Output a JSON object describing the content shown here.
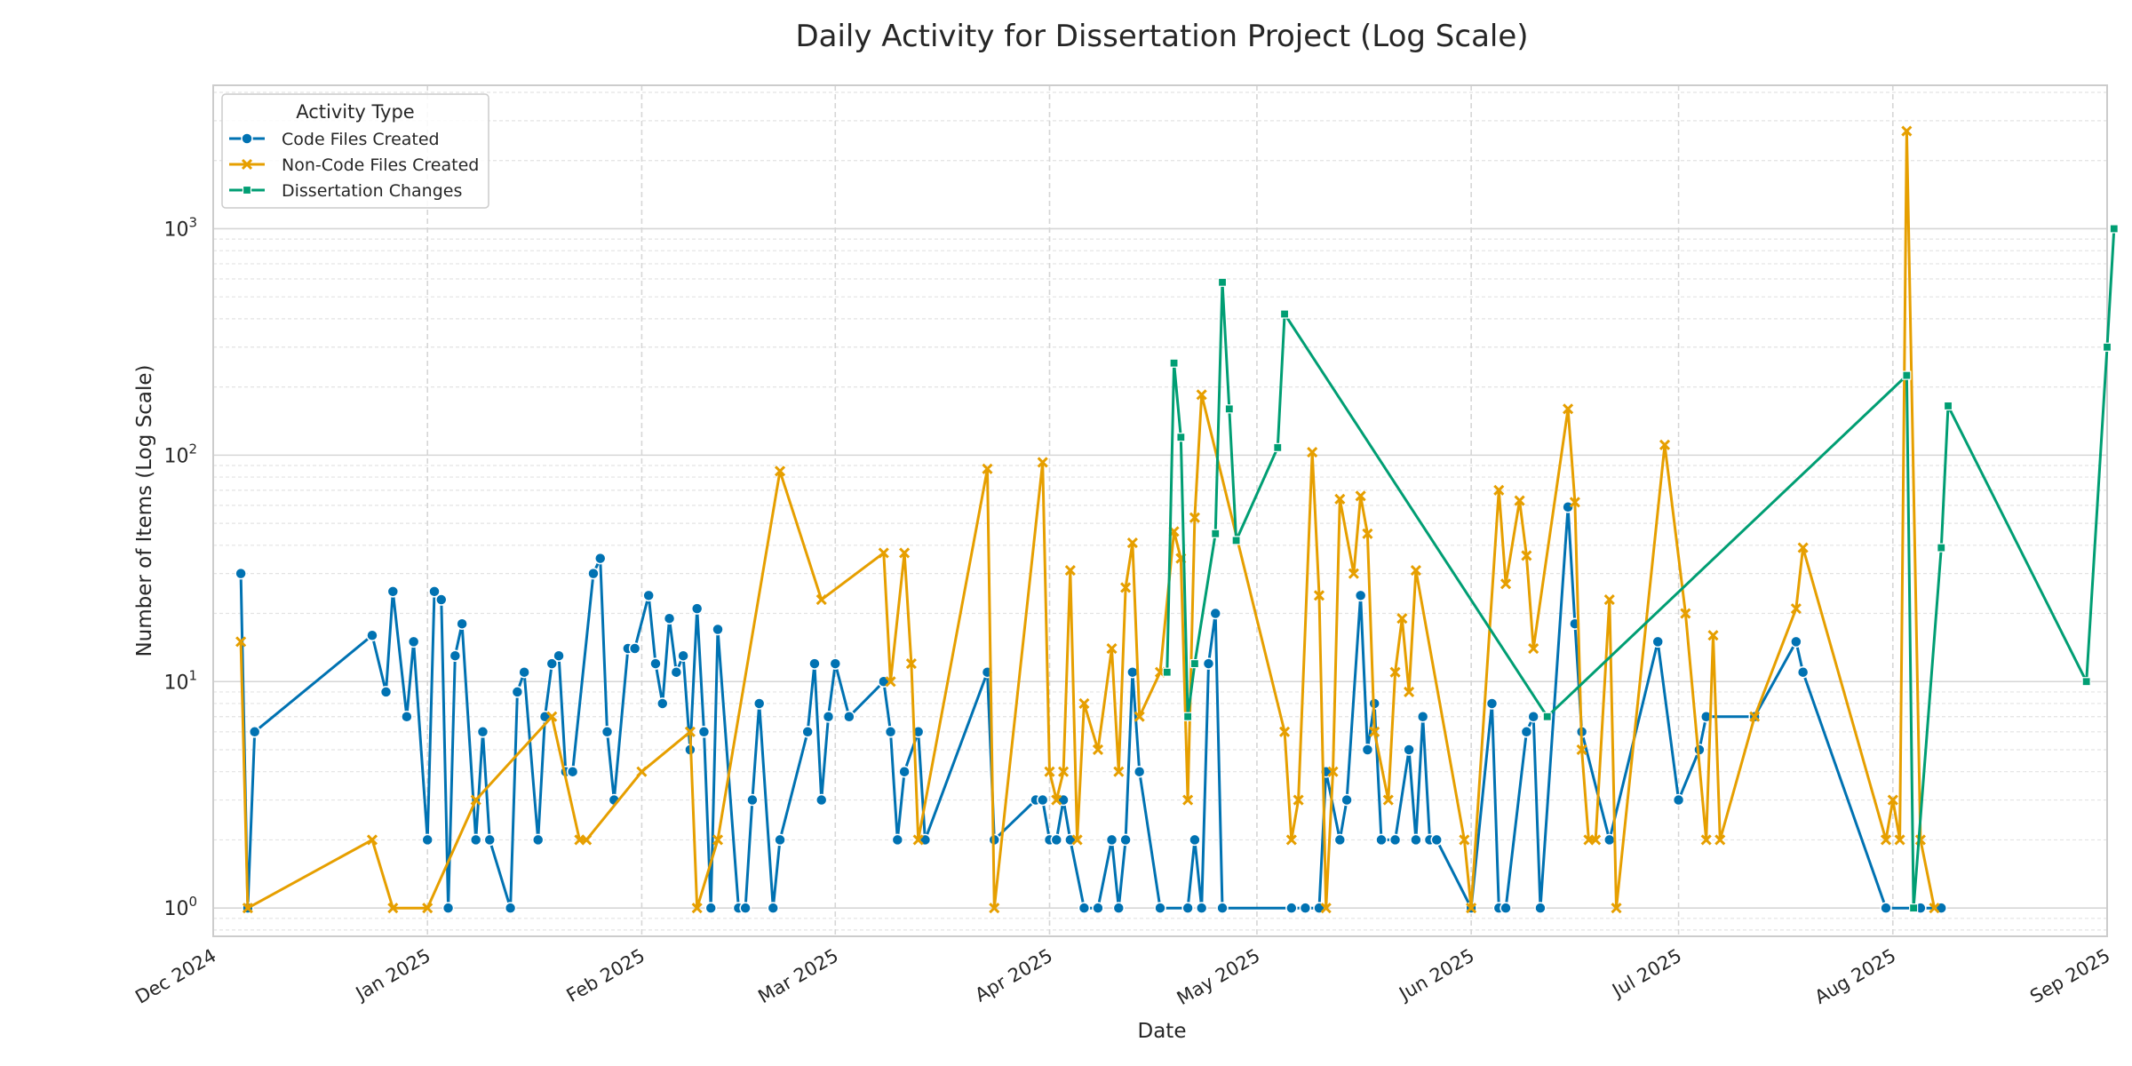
{
  "chart_data": {
    "type": "line",
    "title": "Daily Activity for Dissertation Project (Log Scale)",
    "xlabel": "Date",
    "ylabel": "Number of Items (Log Scale)",
    "y_scale": "log",
    "ylim": [
      0.75,
      4300
    ],
    "xlim": [
      "2024-12-01",
      "2025-09-01"
    ],
    "grid": true,
    "legend_position": "top-left",
    "legend_title": "Activity Type",
    "x_ticks": [
      {
        "date": "2024-12-01",
        "label": "Dec 2024"
      },
      {
        "date": "2025-01-01",
        "label": "Jan 2025"
      },
      {
        "date": "2025-02-01",
        "label": "Feb 2025"
      },
      {
        "date": "2025-03-01",
        "label": "Mar 2025"
      },
      {
        "date": "2025-04-01",
        "label": "Apr 2025"
      },
      {
        "date": "2025-05-01",
        "label": "May 2025"
      },
      {
        "date": "2025-06-01",
        "label": "Jun 2025"
      },
      {
        "date": "2025-07-01",
        "label": "Jul 2025"
      },
      {
        "date": "2025-08-01",
        "label": "Aug 2025"
      },
      {
        "date": "2025-09-01",
        "label": "Sep 2025"
      }
    ],
    "y_ticks": [
      {
        "value": 1,
        "base": "10",
        "exp": "0"
      },
      {
        "value": 10,
        "base": "10",
        "exp": "1"
      },
      {
        "value": 100,
        "base": "10",
        "exp": "2"
      },
      {
        "value": 1000,
        "base": "10",
        "exp": "3"
      }
    ],
    "series": [
      {
        "name": "Code Files Created",
        "color": "#0072b2",
        "marker": "circle",
        "points": [
          [
            "2024-12-05",
            30
          ],
          [
            "2024-12-06",
            1
          ],
          [
            "2024-12-07",
            6
          ],
          [
            "2024-12-24",
            16
          ],
          [
            "2024-12-26",
            9
          ],
          [
            "2024-12-27",
            25
          ],
          [
            "2024-12-29",
            7
          ],
          [
            "2024-12-30",
            15
          ],
          [
            "2025-01-01",
            2
          ],
          [
            "2025-01-02",
            25
          ],
          [
            "2025-01-03",
            23
          ],
          [
            "2025-01-04",
            1
          ],
          [
            "2025-01-05",
            13
          ],
          [
            "2025-01-06",
            18
          ],
          [
            "2025-01-08",
            2
          ],
          [
            "2025-01-09",
            6
          ],
          [
            "2025-01-10",
            2
          ],
          [
            "2025-01-13",
            1
          ],
          [
            "2025-01-14",
            9
          ],
          [
            "2025-01-15",
            11
          ],
          [
            "2025-01-17",
            2
          ],
          [
            "2025-01-18",
            7
          ],
          [
            "2025-01-19",
            12
          ],
          [
            "2025-01-20",
            13
          ],
          [
            "2025-01-21",
            4
          ],
          [
            "2025-01-22",
            4
          ],
          [
            "2025-01-25",
            30
          ],
          [
            "2025-01-26",
            35
          ],
          [
            "2025-01-27",
            6
          ],
          [
            "2025-01-28",
            3
          ],
          [
            "2025-01-30",
            14
          ],
          [
            "2025-01-31",
            14
          ],
          [
            "2025-02-02",
            24
          ],
          [
            "2025-02-03",
            12
          ],
          [
            "2025-02-04",
            8
          ],
          [
            "2025-02-05",
            19
          ],
          [
            "2025-02-06",
            11
          ],
          [
            "2025-02-07",
            13
          ],
          [
            "2025-02-08",
            5
          ],
          [
            "2025-02-09",
            21
          ],
          [
            "2025-02-10",
            6
          ],
          [
            "2025-02-11",
            1
          ],
          [
            "2025-02-12",
            17
          ],
          [
            "2025-02-15",
            1
          ],
          [
            "2025-02-16",
            1
          ],
          [
            "2025-02-17",
            3
          ],
          [
            "2025-02-18",
            8
          ],
          [
            "2025-02-20",
            1
          ],
          [
            "2025-02-21",
            2
          ],
          [
            "2025-02-25",
            6
          ],
          [
            "2025-02-26",
            12
          ],
          [
            "2025-02-27",
            3
          ],
          [
            "2025-02-28",
            7
          ],
          [
            "2025-03-01",
            12
          ],
          [
            "2025-03-03",
            7
          ],
          [
            "2025-03-08",
            10
          ],
          [
            "2025-03-09",
            6
          ],
          [
            "2025-03-10",
            2
          ],
          [
            "2025-03-11",
            4
          ],
          [
            "2025-03-13",
            6
          ],
          [
            "2025-03-14",
            2
          ],
          [
            "2025-03-23",
            11
          ],
          [
            "2025-03-24",
            2
          ],
          [
            "2025-03-30",
            3
          ],
          [
            "2025-03-31",
            3
          ],
          [
            "2025-04-01",
            2
          ],
          [
            "2025-04-02",
            2
          ],
          [
            "2025-04-03",
            3
          ],
          [
            "2025-04-04",
            2
          ],
          [
            "2025-04-06",
            1
          ],
          [
            "2025-04-08",
            1
          ],
          [
            "2025-04-10",
            2
          ],
          [
            "2025-04-11",
            1
          ],
          [
            "2025-04-12",
            2
          ],
          [
            "2025-04-13",
            11
          ],
          [
            "2025-04-14",
            4
          ],
          [
            "2025-04-17",
            1
          ],
          [
            "2025-04-21",
            1
          ],
          [
            "2025-04-22",
            2
          ],
          [
            "2025-04-23",
            1
          ],
          [
            "2025-04-24",
            12
          ],
          [
            "2025-04-25",
            20
          ],
          [
            "2025-04-26",
            1
          ],
          [
            "2025-05-06",
            1
          ],
          [
            "2025-05-08",
            1
          ],
          [
            "2025-05-10",
            1
          ],
          [
            "2025-05-11",
            4
          ],
          [
            "2025-05-13",
            2
          ],
          [
            "2025-05-14",
            3
          ],
          [
            "2025-05-16",
            24
          ],
          [
            "2025-05-17",
            5
          ],
          [
            "2025-05-18",
            8
          ],
          [
            "2025-05-19",
            2
          ],
          [
            "2025-05-21",
            2
          ],
          [
            "2025-05-23",
            5
          ],
          [
            "2025-05-24",
            2
          ],
          [
            "2025-05-25",
            7
          ],
          [
            "2025-05-26",
            2
          ],
          [
            "2025-05-27",
            2
          ],
          [
            "2025-06-01",
            1
          ],
          [
            "2025-06-04",
            8
          ],
          [
            "2025-06-05",
            1
          ],
          [
            "2025-06-06",
            1
          ],
          [
            "2025-06-09",
            6
          ],
          [
            "2025-06-10",
            7
          ],
          [
            "2025-06-11",
            1
          ],
          [
            "2025-06-15",
            59
          ],
          [
            "2025-06-16",
            18
          ],
          [
            "2025-06-17",
            6
          ],
          [
            "2025-06-21",
            2
          ],
          [
            "2025-06-28",
            15
          ],
          [
            "2025-07-01",
            3
          ],
          [
            "2025-07-04",
            5
          ],
          [
            "2025-07-05",
            7
          ],
          [
            "2025-07-12",
            7
          ],
          [
            "2025-07-18",
            15
          ],
          [
            "2025-07-19",
            11
          ],
          [
            "2025-07-31",
            1
          ],
          [
            "2025-08-05",
            1
          ],
          [
            "2025-08-08",
            1
          ]
        ]
      },
      {
        "name": "Non-Code Files Created",
        "color": "#e69f00",
        "marker": "x",
        "points": [
          [
            "2024-12-05",
            15
          ],
          [
            "2024-12-06",
            1
          ],
          [
            "2024-12-24",
            2
          ],
          [
            "2024-12-27",
            1
          ],
          [
            "2025-01-01",
            1
          ],
          [
            "2025-01-08",
            3
          ],
          [
            "2025-01-19",
            7
          ],
          [
            "2025-01-23",
            2
          ],
          [
            "2025-01-24",
            2
          ],
          [
            "2025-02-01",
            4
          ],
          [
            "2025-02-08",
            6
          ],
          [
            "2025-02-09",
            1
          ],
          [
            "2025-02-12",
            2
          ],
          [
            "2025-02-21",
            85
          ],
          [
            "2025-02-27",
            23
          ],
          [
            "2025-03-08",
            37
          ],
          [
            "2025-03-09",
            10
          ],
          [
            "2025-03-11",
            37
          ],
          [
            "2025-03-12",
            12
          ],
          [
            "2025-03-13",
            2
          ],
          [
            "2025-03-23",
            87
          ],
          [
            "2025-03-24",
            1
          ],
          [
            "2025-03-31",
            93
          ],
          [
            "2025-04-01",
            4
          ],
          [
            "2025-04-02",
            3
          ],
          [
            "2025-04-03",
            4
          ],
          [
            "2025-04-04",
            31
          ],
          [
            "2025-04-05",
            2
          ],
          [
            "2025-04-06",
            8
          ],
          [
            "2025-04-08",
            5
          ],
          [
            "2025-04-10",
            14
          ],
          [
            "2025-04-11",
            4
          ],
          [
            "2025-04-12",
            26
          ],
          [
            "2025-04-13",
            41
          ],
          [
            "2025-04-14",
            7
          ],
          [
            "2025-04-17",
            11
          ],
          [
            "2025-04-19",
            46
          ],
          [
            "2025-04-20",
            35
          ],
          [
            "2025-04-21",
            3
          ],
          [
            "2025-04-22",
            53
          ],
          [
            "2025-04-23",
            185
          ],
          [
            "2025-05-05",
            6
          ],
          [
            "2025-05-06",
            2
          ],
          [
            "2025-05-07",
            3
          ],
          [
            "2025-05-09",
            103
          ],
          [
            "2025-05-10",
            24
          ],
          [
            "2025-05-11",
            1
          ],
          [
            "2025-05-12",
            4
          ],
          [
            "2025-05-13",
            64
          ],
          [
            "2025-05-15",
            30
          ],
          [
            "2025-05-16",
            66
          ],
          [
            "2025-05-17",
            45
          ],
          [
            "2025-05-18",
            6
          ],
          [
            "2025-05-20",
            3
          ],
          [
            "2025-05-21",
            11
          ],
          [
            "2025-05-22",
            19
          ],
          [
            "2025-05-23",
            9
          ],
          [
            "2025-05-24",
            31
          ],
          [
            "2025-05-31",
            2
          ],
          [
            "2025-06-01",
            1
          ],
          [
            "2025-06-05",
            70
          ],
          [
            "2025-06-06",
            27
          ],
          [
            "2025-06-08",
            63
          ],
          [
            "2025-06-09",
            36
          ],
          [
            "2025-06-10",
            14
          ],
          [
            "2025-06-15",
            160
          ],
          [
            "2025-06-16",
            62
          ],
          [
            "2025-06-17",
            5
          ],
          [
            "2025-06-18",
            2
          ],
          [
            "2025-06-19",
            2
          ],
          [
            "2025-06-21",
            23
          ],
          [
            "2025-06-22",
            1
          ],
          [
            "2025-06-29",
            111
          ],
          [
            "2025-07-02",
            20
          ],
          [
            "2025-07-05",
            2
          ],
          [
            "2025-07-06",
            16
          ],
          [
            "2025-07-07",
            2
          ],
          [
            "2025-07-12",
            7
          ],
          [
            "2025-07-18",
            21
          ],
          [
            "2025-07-19",
            39
          ],
          [
            "2025-07-31",
            2
          ],
          [
            "2025-08-01",
            3
          ],
          [
            "2025-08-02",
            2
          ],
          [
            "2025-08-03",
            2700
          ],
          [
            "2025-08-05",
            2
          ],
          [
            "2025-08-07",
            1
          ]
        ]
      },
      {
        "name": "Dissertation Changes",
        "color": "#009e73",
        "marker": "square",
        "points": [
          [
            "2025-04-18",
            11
          ],
          [
            "2025-04-19",
            255
          ],
          [
            "2025-04-20",
            120
          ],
          [
            "2025-04-21",
            7
          ],
          [
            "2025-04-22",
            12
          ],
          [
            "2025-04-25",
            45
          ],
          [
            "2025-04-26",
            580
          ],
          [
            "2025-04-27",
            160
          ],
          [
            "2025-04-28",
            42
          ],
          [
            "2025-05-04",
            108
          ],
          [
            "2025-05-05",
            420
          ],
          [
            "2025-06-12",
            7
          ],
          [
            "2025-08-03",
            225
          ],
          [
            "2025-08-04",
            1
          ],
          [
            "2025-08-08",
            39
          ],
          [
            "2025-08-09",
            165
          ],
          [
            "2025-08-29",
            10
          ],
          [
            "2025-09-01",
            300
          ],
          [
            "2025-09-02",
            1000
          ]
        ]
      }
    ]
  }
}
